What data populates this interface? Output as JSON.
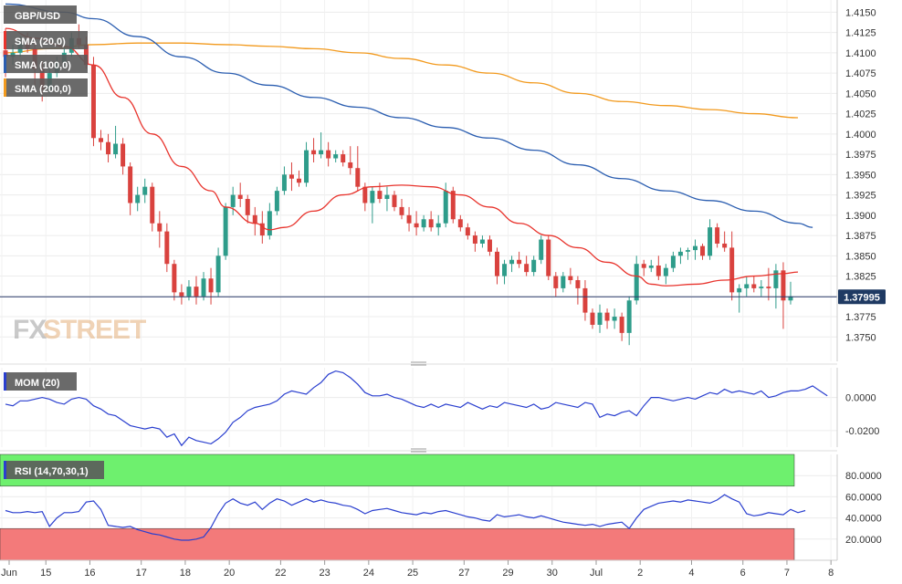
{
  "brand": {
    "watermark_fx": "FX",
    "watermark_street": "STREET"
  },
  "colors": {
    "bull": "#2e9c8a",
    "bear": "#d9423e",
    "sma20": "#e8332c",
    "sma100": "#2a5db0",
    "sma200": "#f29a1e",
    "mom": "#2a3fcf",
    "rsi": "#2a3fcf",
    "rsi_over": "#6ef06e",
    "rsi_under": "#f37a7a",
    "price_line": "#2a3a6a"
  },
  "chart_data": [
    {
      "type": "candlestick",
      "title": "GBP/USD",
      "legend": [
        {
          "name": "SMA (20,0)",
          "color": "#e8332c"
        },
        {
          "name": "SMA (100,0)",
          "color": "#2a5db0"
        },
        {
          "name": "SMA (200,0)",
          "color": "#f29a1e"
        }
      ],
      "ylim": [
        1.372,
        1.4165
      ],
      "yticks": [
        "1.4150",
        "1.4125",
        "1.4100",
        "1.4075",
        "1.4050",
        "1.4025",
        "1.4000",
        "1.3975",
        "1.3950",
        "1.3925",
        "1.3900",
        "1.3875",
        "1.3850",
        "1.3825",
        "1.3800",
        "1.3775",
        "1.3750"
      ],
      "current_price": "1.37995",
      "xticks": [
        "Jun",
        "15",
        "16",
        "17",
        "18",
        "20",
        "22",
        "23",
        "24",
        "25",
        "27",
        "29",
        "30",
        "Jul",
        "2",
        "4",
        "6",
        "7",
        "8"
      ],
      "candles": [
        [
          1.4103,
          1.413,
          1.407,
          1.4095
        ],
        [
          1.4095,
          1.411,
          1.4085,
          1.41
        ],
        [
          1.41,
          1.412,
          1.4095,
          1.4112
        ],
        [
          1.4112,
          1.4125,
          1.41,
          1.4105
        ],
        [
          1.4105,
          1.4115,
          1.406,
          1.408
        ],
        [
          1.408,
          1.409,
          1.404,
          1.4055
        ],
        [
          1.4055,
          1.4085,
          1.405,
          1.4075
        ],
        [
          1.4075,
          1.4095,
          1.407,
          1.4088
        ],
        [
          1.4088,
          1.411,
          1.408,
          1.41
        ],
        [
          1.41,
          1.4125,
          1.4095,
          1.4118
        ],
        [
          1.4118,
          1.4135,
          1.4105,
          1.411
        ],
        [
          1.411,
          1.412,
          1.408,
          1.4085
        ],
        [
          1.4085,
          1.4095,
          1.3985,
          1.3995
        ],
        [
          1.3995,
          1.4005,
          1.398,
          1.399
        ],
        [
          1.399,
          1.4,
          1.3965,
          1.3975
        ],
        [
          1.3975,
          1.401,
          1.397,
          1.3988
        ],
        [
          1.3988,
          1.3995,
          1.395,
          1.396
        ],
        [
          1.396,
          1.3965,
          1.39,
          1.3915
        ],
        [
          1.3915,
          1.3935,
          1.3905,
          1.3925
        ],
        [
          1.3925,
          1.3945,
          1.3915,
          1.3935
        ],
        [
          1.3935,
          1.394,
          1.388,
          1.389
        ],
        [
          1.389,
          1.3905,
          1.386,
          1.388
        ],
        [
          1.388,
          1.389,
          1.383,
          1.384
        ],
        [
          1.384,
          1.3845,
          1.3795,
          1.3805
        ],
        [
          1.3805,
          1.3815,
          1.379,
          1.38
        ],
        [
          1.38,
          1.382,
          1.3795,
          1.3812
        ],
        [
          1.3812,
          1.3825,
          1.379,
          1.38
        ],
        [
          1.38,
          1.383,
          1.3795,
          1.3822
        ],
        [
          1.3822,
          1.3835,
          1.379,
          1.3805
        ],
        [
          1.3805,
          1.386,
          1.38,
          1.385
        ],
        [
          1.385,
          1.3915,
          1.3845,
          1.391
        ],
        [
          1.391,
          1.3935,
          1.39,
          1.3925
        ],
        [
          1.3925,
          1.394,
          1.391,
          1.392
        ],
        [
          1.392,
          1.3925,
          1.389,
          1.39
        ],
        [
          1.39,
          1.391,
          1.3875,
          1.389
        ],
        [
          1.389,
          1.3905,
          1.3865,
          1.3875
        ],
        [
          1.3875,
          1.3915,
          1.387,
          1.3905
        ],
        [
          1.3905,
          1.3935,
          1.39,
          1.393
        ],
        [
          1.393,
          1.396,
          1.3925,
          1.395
        ],
        [
          1.395,
          1.3965,
          1.393,
          1.3945
        ],
        [
          1.3945,
          1.3955,
          1.3935,
          1.394
        ],
        [
          1.394,
          1.399,
          1.3935,
          1.398
        ],
        [
          1.398,
          1.3995,
          1.3965,
          1.3975
        ],
        [
          1.3975,
          1.4002,
          1.397,
          1.398
        ],
        [
          1.398,
          1.399,
          1.396,
          1.397
        ],
        [
          1.397,
          1.398,
          1.3965,
          1.3975
        ],
        [
          1.3975,
          1.398,
          1.396,
          1.3965
        ],
        [
          1.3965,
          1.3985,
          1.395,
          1.3958
        ],
        [
          1.3958,
          1.3985,
          1.393,
          1.3935
        ],
        [
          1.3935,
          1.394,
          1.3905,
          1.3915
        ],
        [
          1.3915,
          1.3935,
          1.389,
          1.393
        ],
        [
          1.393,
          1.394,
          1.3915,
          1.392
        ],
        [
          1.392,
          1.3935,
          1.3905,
          1.3925
        ],
        [
          1.3925,
          1.393,
          1.3905,
          1.391
        ],
        [
          1.391,
          1.392,
          1.3895,
          1.39
        ],
        [
          1.39,
          1.391,
          1.388,
          1.389
        ],
        [
          1.389,
          1.3905,
          1.3875,
          1.3885
        ],
        [
          1.3885,
          1.39,
          1.388,
          1.3895
        ],
        [
          1.3895,
          1.3905,
          1.388,
          1.3885
        ],
        [
          1.3885,
          1.39,
          1.3875,
          1.389
        ],
        [
          1.389,
          1.394,
          1.3885,
          1.393
        ],
        [
          1.393,
          1.3935,
          1.389,
          1.3895
        ],
        [
          1.3895,
          1.39,
          1.388,
          1.3885
        ],
        [
          1.3885,
          1.389,
          1.387,
          1.3875
        ],
        [
          1.3875,
          1.388,
          1.3855,
          1.3865
        ],
        [
          1.3865,
          1.3875,
          1.386,
          1.387
        ],
        [
          1.387,
          1.3875,
          1.385,
          1.3855
        ],
        [
          1.3855,
          1.386,
          1.3815,
          1.3825
        ],
        [
          1.3825,
          1.3845,
          1.3815,
          1.384
        ],
        [
          1.384,
          1.385,
          1.383,
          1.3845
        ],
        [
          1.3845,
          1.3855,
          1.3835,
          1.384
        ],
        [
          1.384,
          1.385,
          1.3825,
          1.383
        ],
        [
          1.383,
          1.385,
          1.3825,
          1.3845
        ],
        [
          1.3845,
          1.3875,
          1.384,
          1.387
        ],
        [
          1.387,
          1.3875,
          1.382,
          1.3825
        ],
        [
          1.3825,
          1.383,
          1.38,
          1.381
        ],
        [
          1.381,
          1.383,
          1.3805,
          1.3825
        ],
        [
          1.3825,
          1.3835,
          1.3815,
          1.382
        ],
        [
          1.382,
          1.3825,
          1.379,
          1.381
        ],
        [
          1.381,
          1.382,
          1.377,
          1.378
        ],
        [
          1.378,
          1.3785,
          1.376,
          1.3765
        ],
        [
          1.3765,
          1.379,
          1.3755,
          1.378
        ],
        [
          1.378,
          1.3785,
          1.376,
          1.377
        ],
        [
          1.377,
          1.3785,
          1.376,
          1.3775
        ],
        [
          1.3775,
          1.378,
          1.3745,
          1.3755
        ],
        [
          1.3755,
          1.38,
          1.374,
          1.3795
        ],
        [
          1.3795,
          1.385,
          1.379,
          1.384
        ],
        [
          1.384,
          1.3845,
          1.3825,
          1.3835
        ],
        [
          1.3835,
          1.3845,
          1.383,
          1.3838
        ],
        [
          1.3838,
          1.385,
          1.382,
          1.3825
        ],
        [
          1.3825,
          1.384,
          1.3815,
          1.3835
        ],
        [
          1.3835,
          1.3855,
          1.383,
          1.385
        ],
        [
          1.385,
          1.386,
          1.384,
          1.3855
        ],
        [
          1.3855,
          1.386,
          1.3845,
          1.3857
        ],
        [
          1.3857,
          1.387,
          1.3845,
          1.3862
        ],
        [
          1.3862,
          1.3865,
          1.3845,
          1.385
        ],
        [
          1.385,
          1.3895,
          1.3845,
          1.3885
        ],
        [
          1.3885,
          1.389,
          1.386,
          1.3865
        ],
        [
          1.3865,
          1.388,
          1.3855,
          1.386
        ],
        [
          1.386,
          1.388,
          1.3795,
          1.3805
        ],
        [
          1.3805,
          1.3815,
          1.378,
          1.381
        ],
        [
          1.381,
          1.3825,
          1.38,
          1.3815
        ],
        [
          1.3815,
          1.3825,
          1.3805,
          1.381
        ],
        [
          1.381,
          1.382,
          1.38,
          1.3812
        ],
        [
          1.3812,
          1.3835,
          1.3795,
          1.381
        ],
        [
          1.381,
          1.384,
          1.3785,
          1.3832
        ],
        [
          1.3832,
          1.3842,
          1.376,
          1.3795
        ],
        [
          1.3795,
          1.3818,
          1.379,
          1.38
        ]
      ],
      "sma20": [
        [
          0,
          1.413
        ],
        [
          4,
          1.4118
        ],
        [
          8,
          1.4108
        ],
        [
          12,
          1.4085
        ],
        [
          16,
          1.4045
        ],
        [
          20,
          1.4
        ],
        [
          24,
          1.396
        ],
        [
          28,
          1.393
        ],
        [
          30,
          1.391
        ],
        [
          34,
          1.389
        ],
        [
          36,
          1.3882
        ],
        [
          38,
          1.3885
        ],
        [
          42,
          1.3905
        ],
        [
          46,
          1.3925
        ],
        [
          50,
          1.3935
        ],
        [
          54,
          1.3937
        ],
        [
          58,
          1.3935
        ],
        [
          62,
          1.3925
        ],
        [
          66,
          1.391
        ],
        [
          70,
          1.389
        ],
        [
          74,
          1.3875
        ],
        [
          78,
          1.386
        ],
        [
          82,
          1.3842
        ],
        [
          86,
          1.3825
        ],
        [
          88,
          1.3815
        ],
        [
          90,
          1.3813
        ],
        [
          94,
          1.3815
        ],
        [
          98,
          1.382
        ],
        [
          102,
          1.3825
        ],
        [
          106,
          1.3828
        ],
        [
          108,
          1.383
        ]
      ],
      "sma100": [
        [
          0,
          1.416
        ],
        [
          8,
          1.415
        ],
        [
          12,
          1.4142
        ],
        [
          18,
          1.412
        ],
        [
          24,
          1.4095
        ],
        [
          30,
          1.4075
        ],
        [
          36,
          1.406
        ],
        [
          42,
          1.4045
        ],
        [
          48,
          1.4033
        ],
        [
          54,
          1.402
        ],
        [
          60,
          1.4008
        ],
        [
          66,
          1.3995
        ],
        [
          72,
          1.398
        ],
        [
          78,
          1.3962
        ],
        [
          84,
          1.3945
        ],
        [
          90,
          1.393
        ],
        [
          96,
          1.3918
        ],
        [
          102,
          1.3905
        ],
        [
          108,
          1.389
        ],
        [
          110,
          1.3885
        ]
      ],
      "sma200": [
        [
          0,
          1.41
        ],
        [
          6,
          1.4105
        ],
        [
          12,
          1.411
        ],
        [
          18,
          1.4112
        ],
        [
          24,
          1.4112
        ],
        [
          30,
          1.411
        ],
        [
          36,
          1.4108
        ],
        [
          42,
          1.4105
        ],
        [
          48,
          1.41
        ],
        [
          54,
          1.4093
        ],
        [
          60,
          1.4085
        ],
        [
          66,
          1.4075
        ],
        [
          72,
          1.4063
        ],
        [
          78,
          1.405
        ],
        [
          84,
          1.404
        ],
        [
          90,
          1.4035
        ],
        [
          96,
          1.403
        ],
        [
          102,
          1.4025
        ],
        [
          108,
          1.402
        ]
      ]
    },
    {
      "type": "line",
      "title": "MOM (20)",
      "ylim": [
        -0.03,
        0.018
      ],
      "yticks": [
        "0.0000",
        "-0.0200"
      ],
      "values": [
        -0.004,
        -0.005,
        -0.002,
        -0.002,
        -0.001,
        0.0,
        -0.001,
        -0.003,
        -0.004,
        -0.001,
        0.0,
        -0.001,
        -0.005,
        -0.007,
        -0.01,
        -0.011,
        -0.014,
        -0.017,
        -0.018,
        -0.019,
        -0.018,
        -0.019,
        -0.024,
        -0.022,
        -0.029,
        -0.024,
        -0.026,
        -0.027,
        -0.028,
        -0.025,
        -0.021,
        -0.015,
        -0.012,
        -0.008,
        -0.006,
        -0.005,
        -0.004,
        -0.002,
        0.002,
        0.004,
        0.003,
        0.002,
        0.006,
        0.009,
        0.014,
        0.016,
        0.015,
        0.012,
        0.008,
        0.003,
        0.001,
        0.001,
        0.002,
        0.0,
        -0.001,
        -0.003,
        -0.005,
        -0.006,
        -0.004,
        -0.006,
        -0.004,
        -0.005,
        -0.006,
        -0.003,
        -0.005,
        -0.007,
        -0.005,
        -0.006,
        -0.003,
        -0.004,
        -0.005,
        -0.006,
        -0.004,
        -0.007,
        -0.006,
        -0.003,
        -0.004,
        -0.005,
        -0.006,
        -0.003,
        -0.004,
        -0.012,
        -0.01,
        -0.011,
        -0.009,
        -0.008,
        -0.011,
        -0.005,
        0.0,
        0.0,
        -0.001,
        -0.002,
        -0.001,
        0.0,
        -0.001,
        0.001,
        0.003,
        0.002,
        0.005,
        0.003,
        0.004,
        0.003,
        0.002,
        0.004,
        0.0,
        0.001,
        0.003,
        0.004,
        0.004,
        0.005,
        0.007,
        0.004,
        0.001
      ]
    },
    {
      "type": "line",
      "title": "RSI (14,70,30,1)",
      "ylim": [
        0,
        100
      ],
      "yticks": [
        "80.0000",
        "60.0000",
        "40.0000",
        "20.0000"
      ],
      "overbought": 70,
      "oversold": 30,
      "values": [
        47,
        45,
        45,
        46,
        45,
        46,
        32,
        40,
        45,
        45,
        46,
        55,
        56,
        48,
        33,
        32,
        31,
        32,
        29,
        27,
        25,
        24,
        22,
        20,
        19,
        19,
        20,
        22,
        31,
        44,
        54,
        58,
        54,
        52,
        55,
        48,
        54,
        58,
        56,
        52,
        55,
        58,
        55,
        57,
        55,
        54,
        52,
        51,
        48,
        44,
        47,
        48,
        49,
        47,
        45,
        44,
        43,
        45,
        44,
        46,
        47,
        45,
        43,
        41,
        40,
        38,
        37,
        43,
        41,
        42,
        43,
        41,
        40,
        42,
        40,
        38,
        36,
        35,
        34,
        33,
        34,
        32,
        34,
        35,
        36,
        30,
        40,
        48,
        51,
        54,
        55,
        56,
        55,
        57,
        56,
        55,
        54,
        57,
        62,
        58,
        55,
        44,
        42,
        43,
        45,
        44,
        43,
        48,
        45,
        47
      ]
    }
  ]
}
